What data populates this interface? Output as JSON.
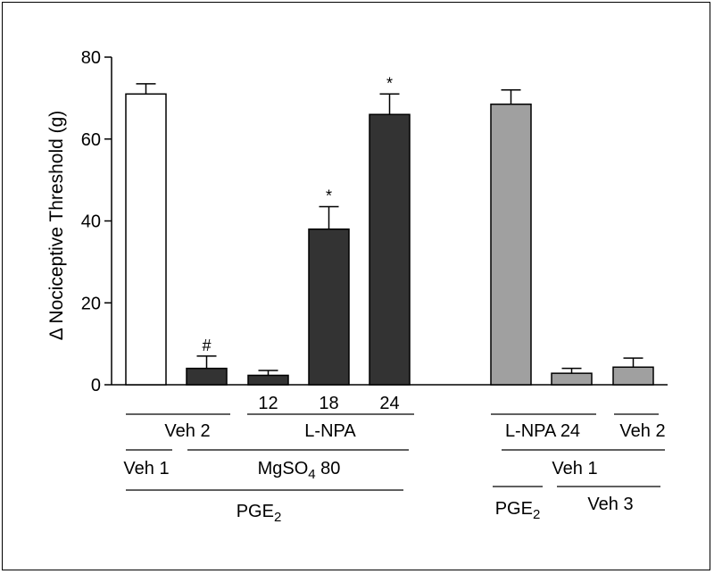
{
  "chart_data": {
    "type": "bar",
    "title": "",
    "ylabel": "Δ Nociceptive Threshold (g)",
    "ylim": [
      0,
      80
    ],
    "yticks": [
      0,
      20,
      40,
      60,
      80
    ],
    "grid": false,
    "bars": [
      {
        "value": 71,
        "error": 2.5,
        "color": "#ffffff",
        "tick": "",
        "sig": ""
      },
      {
        "value": 4,
        "error": 3,
        "color": "#333333",
        "tick": "",
        "sig": "#"
      },
      {
        "value": 2.3,
        "error": 1.2,
        "color": "#333333",
        "tick": "12",
        "sig": ""
      },
      {
        "value": 38,
        "error": 5.5,
        "color": "#333333",
        "tick": "18",
        "sig": "*"
      },
      {
        "value": 66,
        "error": 5,
        "color": "#333333",
        "tick": "24",
        "sig": "*"
      },
      {
        "value": 68.5,
        "error": 3.5,
        "color": "#a0a0a0",
        "tick": "",
        "sig": ""
      },
      {
        "value": 2.8,
        "error": 1.2,
        "color": "#a0a0a0",
        "tick": "",
        "sig": ""
      },
      {
        "value": 4.3,
        "error": 2.2,
        "color": "#a0a0a0",
        "tick": "",
        "sig": ""
      }
    ],
    "group_labels": [
      {
        "text": "Veh 2",
        "sub": ""
      },
      {
        "text": "L-NPA",
        "sub": ""
      },
      {
        "text": "Veh 1",
        "sub": ""
      },
      {
        "text": "MgSO",
        "sub": "4",
        "after": " 80"
      },
      {
        "text": "PGE",
        "sub": "2"
      },
      {
        "text": "L-NPA 24",
        "sub": ""
      },
      {
        "text": "Veh 2",
        "sub": ""
      },
      {
        "text": "Veh 1",
        "sub": ""
      },
      {
        "text": "PGE",
        "sub": "2"
      },
      {
        "text": "Veh 3",
        "sub": ""
      }
    ]
  }
}
